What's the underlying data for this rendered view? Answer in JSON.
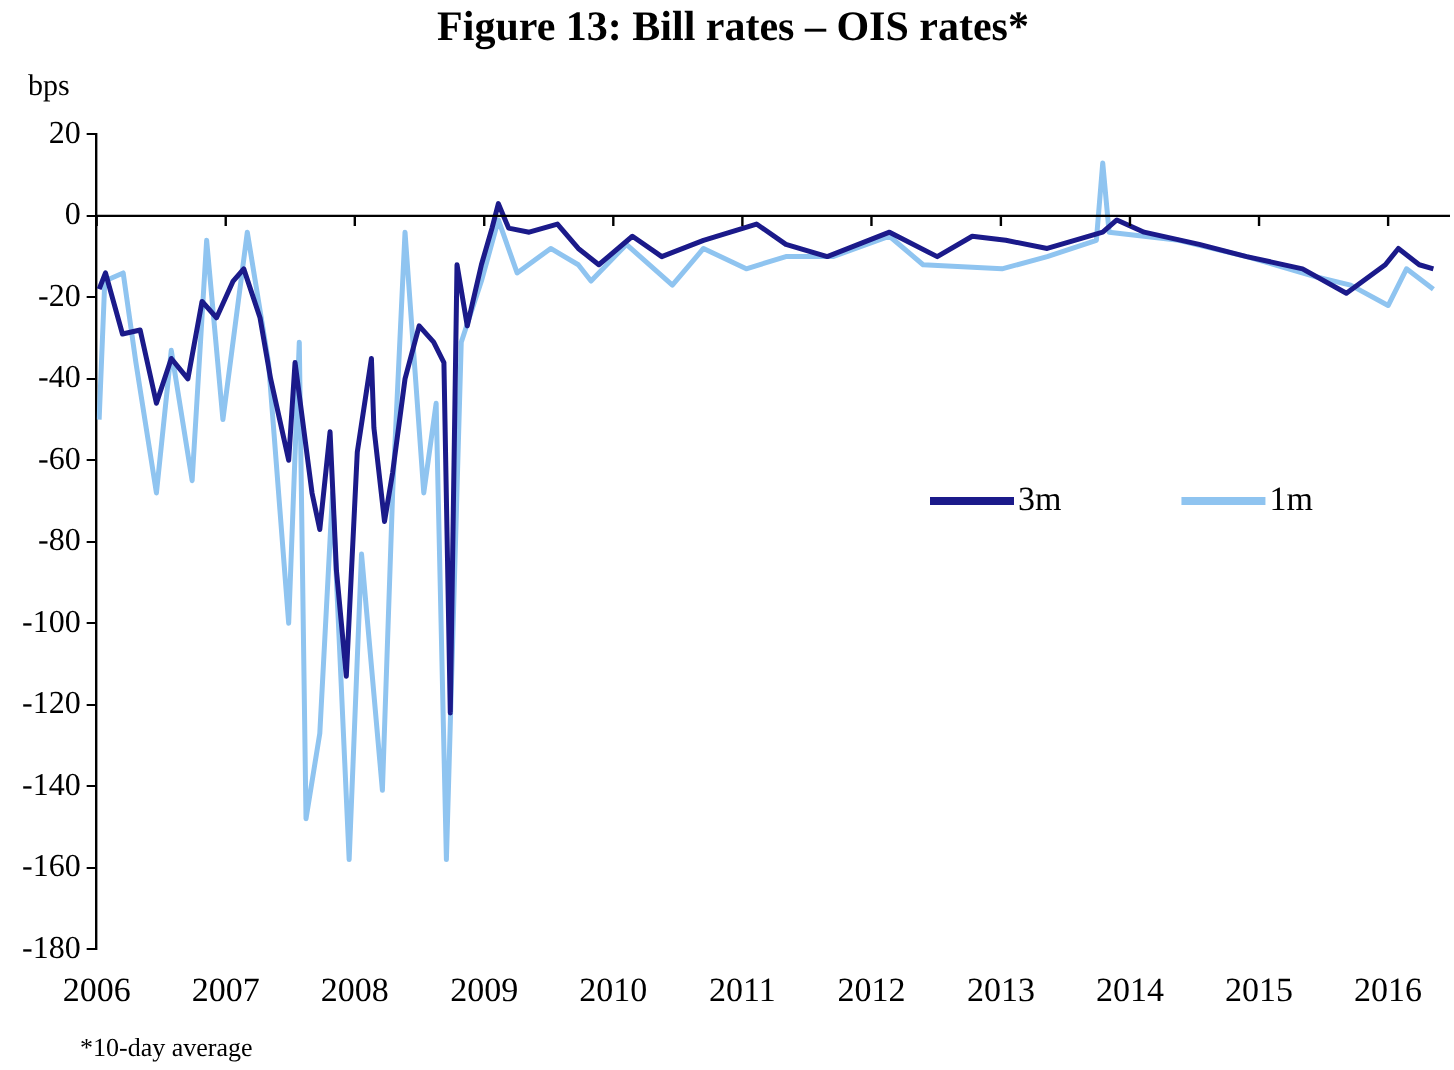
{
  "chart_data": {
    "type": "line",
    "title": "Figure 13: Bill rates – OIS rates*",
    "ylabel": "bps",
    "xlim": [
      "2006-01-01",
      "2016-06-24"
    ],
    "xticks": [
      "2006",
      "2007",
      "2008",
      "2009",
      "2010",
      "2011",
      "2012",
      "2013",
      "2014",
      "2015",
      "2016"
    ],
    "ylim": [
      -180,
      20
    ],
    "yticks": [
      -180,
      -160,
      -140,
      -120,
      -100,
      -80,
      -60,
      -40,
      -20,
      0,
      20
    ],
    "legend": "right",
    "ref_lines": [
      {
        "axis": "y",
        "value": 0
      }
    ],
    "annotations": [
      "*10-day average"
    ],
    "series": [
      {
        "name": "3m",
        "color": "#1b1a8a",
        "x": [
          "2006-01-08",
          "2006-01-26",
          "2006-03-15",
          "2006-05-04",
          "2006-06-19",
          "2006-07-31",
          "2006-09-16",
          "2006-10-26",
          "2006-12-06",
          "2007-01-22",
          "2007-02-21",
          "2007-04-08",
          "2007-05-08",
          "2007-06-28",
          "2007-07-16",
          "2007-09-02",
          "2007-09-24",
          "2007-10-23",
          "2007-11-10",
          "2007-12-08",
          "2008-01-08",
          "2008-02-17",
          "2008-02-24",
          "2008-03-25",
          "2008-04-17",
          "2008-05-22",
          "2008-07-01",
          "2008-08-11",
          "2008-09-09",
          "2008-09-27",
          "2008-10-16",
          "2008-11-14",
          "2008-12-24",
          "2009-01-23",
          "2009-02-10",
          "2009-03-11",
          "2009-05-08",
          "2009-07-27",
          "2009-09-24",
          "2009-11-21",
          "2010-02-24",
          "2010-05-18",
          "2010-09-13",
          "2011-02-10",
          "2011-05-04",
          "2011-08-29",
          "2012-02-21",
          "2012-07-05",
          "2012-10-12",
          "2013-01-15",
          "2013-05-12",
          "2013-10-16",
          "2013-11-25",
          "2014-02-10",
          "2014-07-16",
          "2014-11-27",
          "2015-05-04",
          "2015-09-05",
          "2015-12-24",
          "2016-01-30",
          "2016-03-29",
          "2016-05-08"
        ],
        "values": [
          -18,
          -14,
          -29,
          -28,
          -46,
          -35,
          -40,
          -21,
          -25,
          -16,
          -13,
          -25,
          -40,
          -60,
          -36,
          -68,
          -77,
          -53,
          -87,
          -113,
          -58,
          -35,
          -52,
          -75,
          -63,
          -40,
          -27,
          -31,
          -36,
          -122,
          -12,
          -27,
          -12,
          -3,
          3,
          -3,
          -4,
          -2,
          -8,
          -12,
          -5,
          -10,
          -6,
          -2,
          -7,
          -10,
          -4,
          -10,
          -5,
          -6,
          -8,
          -4,
          -1,
          -4,
          -7,
          -10,
          -13,
          -19,
          -12,
          -8,
          -12,
          -13
        ]
      },
      {
        "name": "1m",
        "color": "#8fc4f0",
        "x": [
          "2006-01-08",
          "2006-01-24",
          "2006-03-17",
          "2006-04-22",
          "2006-06-19",
          "2006-07-31",
          "2006-09-28",
          "2006-11-08",
          "2006-12-24",
          "2007-03-03",
          "2007-05-02",
          "2007-06-28",
          "2007-07-28",
          "2007-08-16",
          "2007-09-24",
          "2007-10-30",
          "2007-12-16",
          "2008-01-20",
          "2008-03-19",
          "2008-04-17",
          "2008-05-22",
          "2008-07-14",
          "2008-08-18",
          "2008-09-16",
          "2008-10-28",
          "2008-12-24",
          "2009-02-10",
          "2009-04-04",
          "2009-07-08",
          "2009-09-24",
          "2009-10-30",
          "2010-02-07",
          "2010-06-17",
          "2010-09-13",
          "2011-01-12",
          "2011-05-04",
          "2011-09-14",
          "2012-02-21",
          "2012-05-26",
          "2013-01-04",
          "2013-05-12",
          "2013-09-28",
          "2013-10-16",
          "2013-11-03",
          "2014-05-19",
          "2014-11-27",
          "2015-06-13",
          "2015-09-17",
          "2016-01-01",
          "2016-02-22",
          "2016-05-08"
        ],
        "values": [
          -50,
          -16,
          -14,
          -36,
          -68,
          -33,
          -65,
          -6,
          -50,
          -4,
          -36,
          -100,
          -31,
          -148,
          -127,
          -68,
          -158,
          -83,
          -141,
          -68,
          -4,
          -68,
          -46,
          -158,
          -31,
          -16,
          -1,
          -14,
          -8,
          -12,
          -16,
          -7,
          -17,
          -8,
          -13,
          -10,
          -10,
          -5,
          -12,
          -13,
          -10,
          -6,
          13,
          -4,
          -6,
          -10,
          -15,
          -17,
          -22,
          -13,
          -18
        ]
      }
    ]
  }
}
